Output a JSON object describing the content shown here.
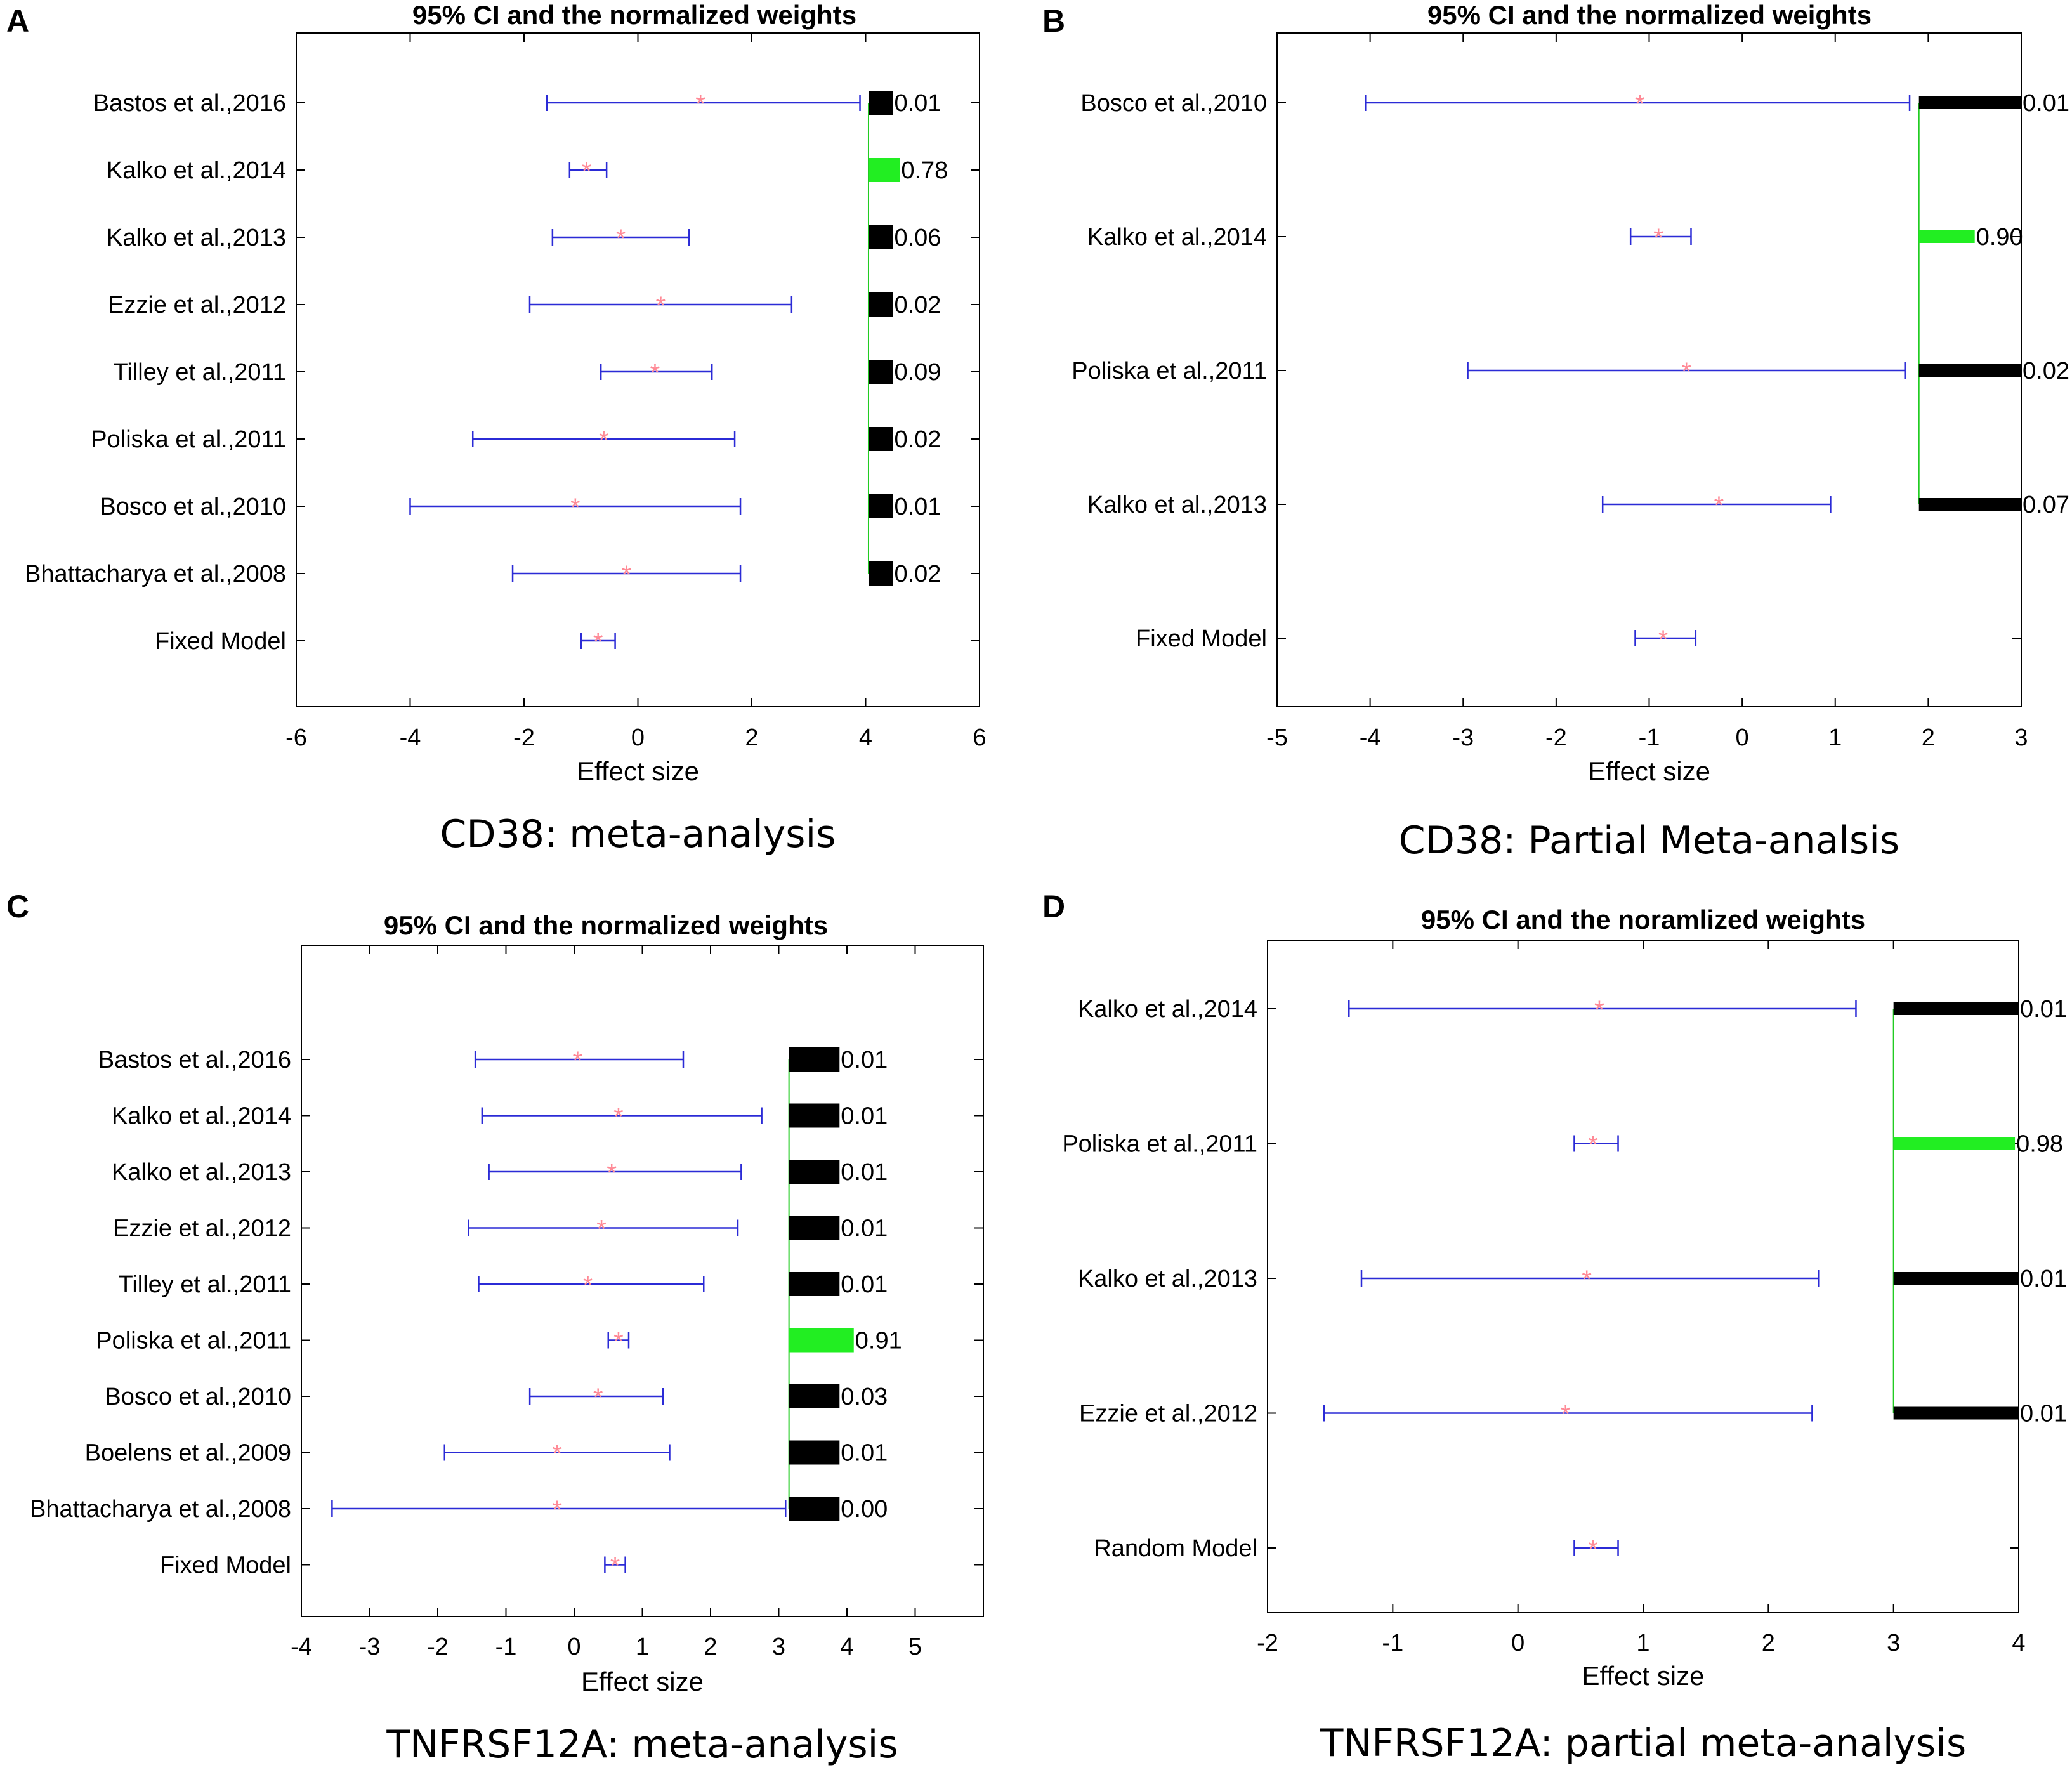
{
  "chart_data": [
    {
      "panel": "A",
      "type": "forest",
      "title": "95% CI and the normalized weights",
      "caption": "CD38: meta-analysis",
      "xlabel": "Effect size",
      "xlim": [
        -6,
        6
      ],
      "xticks": [
        -6,
        -4,
        -2,
        0,
        2,
        4,
        6
      ],
      "colors": {
        "ci": "#2b2bd6",
        "marker": "#ff8a96",
        "weight": "#000000",
        "max_weight": "#22ee22",
        "baseline": "#22cc22"
      },
      "studies": [
        {
          "name": "Bastos et al.,2016",
          "es": 1.1,
          "lo": -1.6,
          "hi": 3.9,
          "weight": 0.01,
          "weight_label": "0.01"
        },
        {
          "name": "Kalko et al.,2014",
          "es": -0.9,
          "lo": -1.2,
          "hi": -0.55,
          "weight": 0.78,
          "weight_label": "0.78"
        },
        {
          "name": "Kalko et al.,2013",
          "es": -0.3,
          "lo": -1.5,
          "hi": 0.9,
          "weight": 0.06,
          "weight_label": "0.06"
        },
        {
          "name": "Ezzie et al.,2012",
          "es": 0.4,
          "lo": -1.9,
          "hi": 2.7,
          "weight": 0.02,
          "weight_label": "0.02"
        },
        {
          "name": "Tilley et al.,2011",
          "es": 0.3,
          "lo": -0.65,
          "hi": 1.3,
          "weight": 0.09,
          "weight_label": "0.09"
        },
        {
          "name": "Poliska et al.,2011",
          "es": -0.6,
          "lo": -2.9,
          "hi": 1.7,
          "weight": 0.02,
          "weight_label": "0.02"
        },
        {
          "name": "Bosco et al.,2010",
          "es": -1.1,
          "lo": -4.0,
          "hi": 1.8,
          "weight": 0.01,
          "weight_label": "0.01"
        },
        {
          "name": "Bhattacharya et al.,2008",
          "es": -0.2,
          "lo": -2.2,
          "hi": 1.8,
          "weight": 0.02,
          "weight_label": "0.02"
        }
      ],
      "pooled": {
        "name": "Fixed Model",
        "es": -0.7,
        "lo": -1.0,
        "hi": -0.4
      }
    },
    {
      "panel": "B",
      "type": "forest",
      "title": "95% CI and the normalized weights",
      "caption": "CD38: Partial Meta-analsis",
      "xlabel": "Effect size",
      "xlim": [
        -5,
        3
      ],
      "xticks": [
        -5,
        -4,
        -3,
        -2,
        -1,
        0,
        1,
        2,
        3
      ],
      "colors": {
        "ci": "#2b2bd6",
        "marker": "#ff8a96",
        "weight": "#000000",
        "max_weight": "#22ee22",
        "baseline": "#22cc22"
      },
      "studies": [
        {
          "name": "Bosco et al.,2010",
          "es": -1.1,
          "lo": -4.05,
          "hi": 1.8,
          "weight": 0.01,
          "weight_label": "0.01"
        },
        {
          "name": "Kalko et al.,2014",
          "es": -0.9,
          "lo": -1.2,
          "hi": -0.55,
          "weight": 0.9,
          "weight_label": "0.90"
        },
        {
          "name": "Poliska et al.,2011",
          "es": -0.6,
          "lo": -2.95,
          "hi": 1.75,
          "weight": 0.02,
          "weight_label": "0.02"
        },
        {
          "name": "Kalko et al.,2013",
          "es": -0.25,
          "lo": -1.5,
          "hi": 0.95,
          "weight": 0.07,
          "weight_label": "0.07"
        }
      ],
      "pooled": {
        "name": "Fixed Model",
        "es": -0.85,
        "lo": -1.15,
        "hi": -0.5
      }
    },
    {
      "panel": "C",
      "type": "forest",
      "title": "95% CI and the normalized weights",
      "caption": "TNFRSF12A: meta-analysis",
      "xlabel": "Effect size",
      "xlim": [
        -4,
        6
      ],
      "xticks": [
        -4,
        -3,
        -2,
        -1,
        0,
        1,
        2,
        3,
        4,
        5
      ],
      "colors": {
        "ci": "#2b2bd6",
        "marker": "#ff8a96",
        "weight": "#000000",
        "max_weight": "#22ee22",
        "baseline": "#22cc22"
      },
      "studies": [
        {
          "name": "Bastos et al.,2016",
          "es": 0.05,
          "lo": -1.45,
          "hi": 1.6,
          "weight": 0.01,
          "weight_label": "0.01"
        },
        {
          "name": "Kalko et al.,2014",
          "es": 0.65,
          "lo": -1.35,
          "hi": 2.75,
          "weight": 0.01,
          "weight_label": "0.01"
        },
        {
          "name": "Kalko et al.,2013",
          "es": 0.55,
          "lo": -1.25,
          "hi": 2.45,
          "weight": 0.01,
          "weight_label": "0.01"
        },
        {
          "name": "Ezzie et al.,2012",
          "es": 0.4,
          "lo": -1.55,
          "hi": 2.4,
          "weight": 0.01,
          "weight_label": "0.01"
        },
        {
          "name": "Tilley et al.,2011",
          "es": 0.2,
          "lo": -1.4,
          "hi": 1.9,
          "weight": 0.01,
          "weight_label": "0.01"
        },
        {
          "name": "Poliska et al.,2011",
          "es": 0.65,
          "lo": 0.5,
          "hi": 0.8,
          "weight": 0.91,
          "weight_label": "0.91"
        },
        {
          "name": "Bosco et al.,2010",
          "es": 0.35,
          "lo": -0.65,
          "hi": 1.3,
          "weight": 0.03,
          "weight_label": "0.03"
        },
        {
          "name": "Boelens et al.,2009",
          "es": -0.25,
          "lo": -1.9,
          "hi": 1.4,
          "weight": 0.01,
          "weight_label": "0.01"
        },
        {
          "name": "Bhattacharya et al.,2008",
          "es": -0.25,
          "lo": -3.55,
          "hi": 3.1,
          "weight": 0.0,
          "weight_label": "0.00"
        }
      ],
      "pooled": {
        "name": "Fixed Model",
        "es": 0.6,
        "lo": 0.45,
        "hi": 0.75
      }
    },
    {
      "panel": "D",
      "type": "forest",
      "title": "95% CI and the noramlized weights",
      "caption": "TNFRSF12A: partial meta-analysis",
      "xlabel": "Effect size",
      "xlim": [
        -2,
        4
      ],
      "xticks": [
        -2,
        -1,
        0,
        1,
        2,
        3,
        4
      ],
      "colors": {
        "ci": "#2b2bd6",
        "marker": "#ff8a96",
        "weight": "#000000",
        "max_weight": "#22ee22",
        "baseline": "#22cc22"
      },
      "studies": [
        {
          "name": "Kalko et al.,2014",
          "es": 0.65,
          "lo": -1.35,
          "hi": 2.7,
          "weight": 0.01,
          "weight_label": "0.01"
        },
        {
          "name": "Poliska et al.,2011",
          "es": 0.6,
          "lo": 0.45,
          "hi": 0.8,
          "weight": 0.98,
          "weight_label": "0.98"
        },
        {
          "name": "Kalko et al.,2013",
          "es": 0.55,
          "lo": -1.25,
          "hi": 2.4,
          "weight": 0.01,
          "weight_label": "0.01"
        },
        {
          "name": "Ezzie et al.,2012",
          "es": 0.38,
          "lo": -1.55,
          "hi": 2.35,
          "weight": 0.01,
          "weight_label": "0.01"
        }
      ],
      "pooled": {
        "name": "Random Model",
        "es": 0.6,
        "lo": 0.45,
        "hi": 0.8
      }
    }
  ]
}
